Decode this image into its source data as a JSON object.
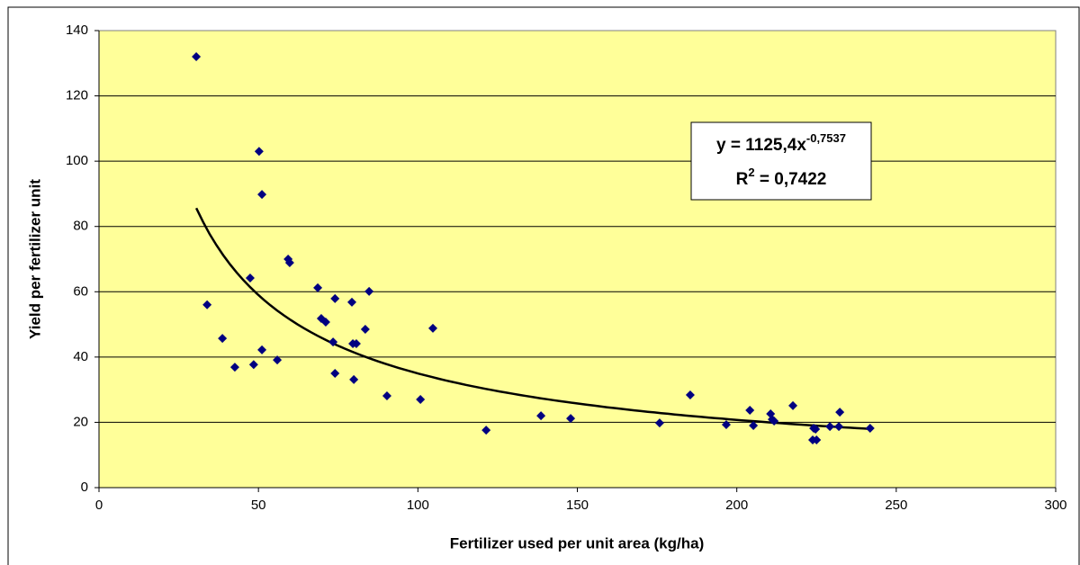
{
  "chart_data": {
    "type": "scatter",
    "x_label": "Fertilizer used per unit area (kg/ha)",
    "y_label": "Yield per fertilizer unit",
    "series": [
      {
        "color": "#000080",
        "x": [
          30.5,
          33.9,
          38.7,
          42.6,
          47.4,
          48.5,
          50.2,
          51.1,
          51.1,
          55.9,
          59.3,
          59.8,
          68.6,
          69.7,
          71.1,
          73.4,
          74,
          74,
          79.3,
          79.6,
          80.7,
          79.9,
          83.5,
          84.7,
          90.3,
          100.8,
          104.7,
          121.4,
          138.6,
          147.9,
          175.8,
          185.4,
          196.7,
          204.1,
          205.2,
          210.6,
          211.1,
          211.7,
          217.6,
          224.1,
          224.7,
          223.8,
          225,
          229.2,
          232,
          232.3,
          241.8
        ],
        "values": [
          132,
          56,
          45.7,
          36.9,
          64.2,
          37.7,
          103,
          89.8,
          42.2,
          39.1,
          70,
          68.9,
          61.2,
          51.8,
          50.7,
          44.6,
          57.9,
          35,
          56.8,
          44.1,
          44.1,
          33.1,
          48.5,
          60.1,
          28.1,
          27,
          48.8,
          17.6,
          22,
          21.2,
          19.8,
          28.4,
          19.3,
          23.7,
          19,
          22.6,
          20.9,
          20.4,
          25.1,
          18.2,
          17.9,
          14.6,
          14.6,
          18.7,
          18.7,
          23.1,
          18.2
        ]
      }
    ],
    "trendline": {
      "type": "power",
      "color": "#000000",
      "equation_prefix": "y = ",
      "variable": "x",
      "coefficient": {
        "value": 1125.4,
        "label": "1125,4"
      },
      "exponent": {
        "value": -0.7537,
        "label": "-0,7537"
      },
      "r_label": "R",
      "r_superscript": "2",
      "equals": " = ",
      "r_squared": {
        "value": 0.7422,
        "label": "0,7422"
      }
    },
    "xlim": [
      0,
      300
    ],
    "xticks": [
      0,
      50,
      100,
      150,
      200,
      250,
      300
    ],
    "ylim": [
      0,
      140
    ],
    "yticks": [
      0,
      20,
      40,
      60,
      80,
      100,
      120,
      140
    ],
    "grid": true,
    "plot_background": "#ffff99"
  }
}
